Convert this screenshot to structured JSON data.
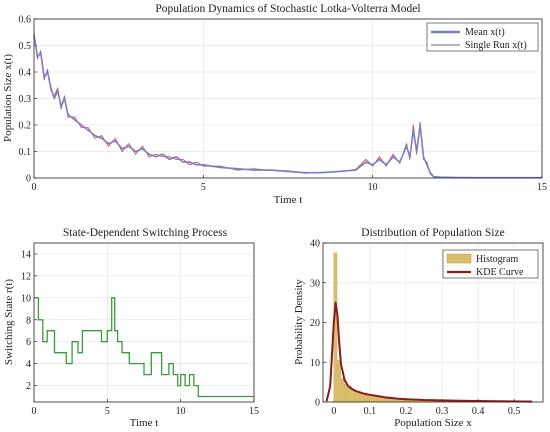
{
  "chart_data": [
    {
      "type": "line",
      "title": "Population Dynamics of Stochastic Lotka-Volterra Model",
      "xlabel": "Time t",
      "ylabel": "Population Size x(t)",
      "xlim": [
        0,
        15
      ],
      "ylim": [
        0,
        0.6
      ],
      "xticks": [
        0,
        5,
        10,
        15
      ],
      "yticks": [
        0,
        0.1,
        0.2,
        0.3,
        0.4,
        0.5,
        0.6
      ],
      "grid": true,
      "legend_position": "top-right",
      "series": [
        {
          "name": "Mean x(t)",
          "color": "#7b7fc4",
          "x": [
            0,
            0.1,
            0.2,
            0.3,
            0.4,
            0.5,
            0.6,
            0.7,
            0.8,
            0.9,
            1.0,
            1.2,
            1.4,
            1.6,
            1.8,
            2.0,
            2.2,
            2.4,
            2.6,
            2.8,
            3.0,
            3.2,
            3.4,
            3.6,
            3.8,
            4.0,
            4.2,
            4.4,
            4.6,
            4.8,
            5.0,
            5.5,
            6.0,
            6.5,
            7.0,
            7.5,
            8.0,
            8.5,
            9.0,
            9.5,
            9.8,
            10.0,
            10.2,
            10.4,
            10.6,
            10.8,
            11.0,
            11.1,
            11.2,
            11.3,
            11.4,
            11.5,
            11.6,
            11.7,
            11.8,
            12.0,
            12.5,
            13,
            14,
            15
          ],
          "y": [
            0.54,
            0.46,
            0.47,
            0.38,
            0.4,
            0.34,
            0.3,
            0.33,
            0.27,
            0.3,
            0.24,
            0.22,
            0.2,
            0.18,
            0.16,
            0.15,
            0.13,
            0.14,
            0.11,
            0.12,
            0.1,
            0.11,
            0.09,
            0.08,
            0.09,
            0.07,
            0.08,
            0.06,
            0.06,
            0.05,
            0.05,
            0.04,
            0.035,
            0.03,
            0.03,
            0.025,
            0.02,
            0.02,
            0.025,
            0.03,
            0.06,
            0.05,
            0.07,
            0.05,
            0.08,
            0.06,
            0.12,
            0.08,
            0.18,
            0.1,
            0.2,
            0.08,
            0.05,
            0.02,
            0.005,
            0.003,
            0.002,
            0.001,
            0.001,
            0.001
          ]
        },
        {
          "name": "Single Run x(t)",
          "color": "#c0606a",
          "x": [
            0,
            0.1,
            0.2,
            0.3,
            0.4,
            0.5,
            0.6,
            0.7,
            0.8,
            0.9,
            1.0,
            1.2,
            1.4,
            1.6,
            1.8,
            2.0,
            2.2,
            2.4,
            2.6,
            2.8,
            3.0,
            3.2,
            3.4,
            3.6,
            3.8,
            4.0,
            4.2,
            4.4,
            4.6,
            4.8,
            5.0,
            5.5,
            6.0,
            6.5,
            7.0,
            7.5,
            8.0,
            8.5,
            9.0,
            9.5,
            9.8,
            10.0,
            10.2,
            10.4,
            10.6,
            10.8,
            11.0,
            11.1,
            11.2,
            11.3,
            11.4,
            11.5,
            11.6,
            11.7,
            11.8,
            12.0,
            12.5,
            13,
            14,
            15
          ],
          "y": [
            0.55,
            0.45,
            0.48,
            0.37,
            0.41,
            0.33,
            0.31,
            0.34,
            0.26,
            0.31,
            0.23,
            0.23,
            0.19,
            0.19,
            0.15,
            0.16,
            0.12,
            0.15,
            0.1,
            0.13,
            0.09,
            0.12,
            0.08,
            0.09,
            0.08,
            0.08,
            0.07,
            0.07,
            0.05,
            0.06,
            0.045,
            0.045,
            0.03,
            0.035,
            0.028,
            0.027,
            0.018,
            0.022,
            0.023,
            0.032,
            0.07,
            0.045,
            0.08,
            0.045,
            0.09,
            0.055,
            0.13,
            0.07,
            0.2,
            0.09,
            0.21,
            0.07,
            0.06,
            0.015,
            0.004,
            0.003,
            0.002,
            0.001,
            0.001,
            0.001
          ]
        }
      ]
    },
    {
      "type": "line",
      "title": "State-Dependent Switching Process",
      "xlabel": "Time t",
      "ylabel": "Switching State r(t)",
      "xlim": [
        0,
        15
      ],
      "ylim": [
        0.5,
        15
      ],
      "xticks": [
        0,
        5,
        10,
        15
      ],
      "yticks": [
        2,
        4,
        6,
        8,
        10,
        12,
        14
      ],
      "grid": true,
      "series": [
        {
          "color": "#3d9a3d",
          "x": [
            0,
            0.3,
            0.6,
            0.9,
            1.4,
            2.2,
            2.6,
            3.0,
            3.3,
            4.6,
            5.0,
            5.3,
            5.5,
            5.7,
            6.0,
            6.5,
            7.5,
            8.0,
            8.7,
            9.2,
            9.5,
            9.8,
            10.0,
            10.3,
            10.6,
            10.9,
            11.0,
            11.2,
            15
          ],
          "y": [
            10,
            8,
            6,
            7,
            5,
            4,
            6,
            5,
            7,
            6,
            7,
            10,
            7,
            6,
            5,
            4,
            3,
            5,
            3,
            4,
            3,
            2,
            3,
            2,
            3,
            2,
            2,
            1,
            1
          ]
        }
      ]
    },
    {
      "type": "bar",
      "title": "Distribution of Population Size",
      "xlabel": "Population Size x",
      "ylabel": "Probability Density",
      "xlim": [
        -0.03,
        0.58
      ],
      "ylim": [
        0,
        40
      ],
      "xticks": [
        0,
        0.1,
        0.2,
        0.3,
        0.4,
        0.5
      ],
      "yticks": [
        0,
        10,
        20,
        30,
        40
      ],
      "grid": true,
      "legend_position": "top-right",
      "series": [
        {
          "name": "Histogram",
          "color": "#d9bd6a",
          "type": "bar",
          "bin_width": 0.01,
          "x": [
            0.0,
            0.01,
            0.02,
            0.03,
            0.04,
            0.05,
            0.06,
            0.07,
            0.08,
            0.09,
            0.1,
            0.11,
            0.12,
            0.13,
            0.14,
            0.15,
            0.16,
            0.17,
            0.18,
            0.19,
            0.2,
            0.21,
            0.22,
            0.23,
            0.24,
            0.25,
            0.26,
            0.27,
            0.28,
            0.29,
            0.3,
            0.32,
            0.34,
            0.36,
            0.38,
            0.4,
            0.42,
            0.44,
            0.46,
            0.48,
            0.5,
            0.52,
            0.54
          ],
          "values": [
            37.5,
            10.5,
            6.0,
            4.5,
            4.0,
            3.2,
            2.8,
            2.5,
            2.2,
            2.0,
            1.8,
            1.5,
            1.4,
            1.3,
            1.1,
            1.0,
            0.9,
            0.8,
            0.8,
            0.7,
            0.7,
            0.6,
            0.5,
            0.5,
            0.5,
            0.4,
            0.4,
            0.4,
            0.3,
            0.3,
            0.3,
            0.3,
            0.25,
            0.2,
            0.2,
            0.2,
            0.15,
            0.15,
            0.15,
            0.1,
            0.1,
            0.1,
            0.1
          ]
        },
        {
          "name": "KDE Curve",
          "color": "#8b1a1a",
          "type": "line",
          "x": [
            -0.02,
            -0.01,
            0.0,
            0.005,
            0.01,
            0.015,
            0.02,
            0.03,
            0.04,
            0.05,
            0.06,
            0.07,
            0.08,
            0.09,
            0.1,
            0.12,
            0.14,
            0.16,
            0.18,
            0.2,
            0.25,
            0.3,
            0.35,
            0.4,
            0.45,
            0.5,
            0.55
          ],
          "values": [
            0.2,
            4.0,
            20.0,
            25.0,
            22.0,
            15.0,
            9.5,
            5.5,
            4.0,
            3.3,
            2.8,
            2.5,
            2.2,
            2.0,
            1.8,
            1.5,
            1.2,
            1.0,
            0.8,
            0.7,
            0.5,
            0.4,
            0.3,
            0.25,
            0.2,
            0.15,
            0.1
          ]
        }
      ]
    }
  ]
}
